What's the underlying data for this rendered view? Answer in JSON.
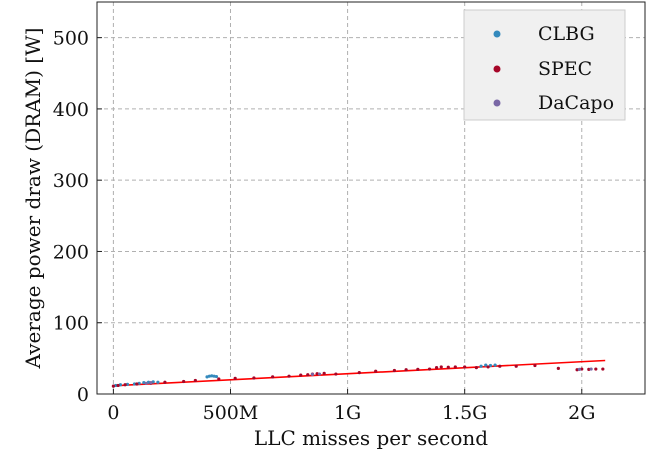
{
  "chart_data": {
    "type": "scatter",
    "title": "",
    "xlabel": "LLC misses per second",
    "ylabel": "Average power draw (DRAM) [W]",
    "xlim": [
      -0.07,
      2.27
    ],
    "ylim": [
      0,
      550
    ],
    "x_unit": "billion LLC misses per second",
    "x_ticks": [
      0,
      0.5,
      1,
      1.5,
      2
    ],
    "x_tick_labels": [
      "0",
      "500M",
      "1G",
      "1.5G",
      "2G"
    ],
    "y_ticks": [
      0,
      100,
      200,
      300,
      400,
      500
    ],
    "y_tick_labels": [
      "0",
      "100",
      "200",
      "300",
      "400",
      "500"
    ],
    "grid": true,
    "legend_position": "top-right",
    "series": [
      {
        "name": "CLBG",
        "color": "#348ABD",
        "points": [
          [
            0.01,
            12
          ],
          [
            0.03,
            13
          ],
          [
            0.06,
            13.5
          ],
          [
            0.09,
            14
          ],
          [
            0.11,
            15
          ],
          [
            0.13,
            16
          ],
          [
            0.15,
            16.5
          ],
          [
            0.17,
            17
          ],
          [
            0.19,
            16.5
          ],
          [
            0.4,
            24
          ],
          [
            0.41,
            25
          ],
          [
            0.42,
            25.5
          ],
          [
            0.43,
            25
          ],
          [
            0.44,
            24.5
          ],
          [
            1.57,
            39
          ],
          [
            1.59,
            40.5
          ],
          [
            1.61,
            40
          ],
          [
            1.63,
            40.5
          ]
        ]
      },
      {
        "name": "SPEC",
        "color": "#A60628",
        "points": [
          [
            0.0,
            11
          ],
          [
            0.02,
            12
          ],
          [
            0.05,
            13
          ],
          [
            0.1,
            14
          ],
          [
            0.16,
            15
          ],
          [
            0.22,
            16.5
          ],
          [
            0.3,
            17.5
          ],
          [
            0.35,
            19
          ],
          [
            0.45,
            21
          ],
          [
            0.52,
            22
          ],
          [
            0.6,
            22.5
          ],
          [
            0.68,
            24
          ],
          [
            0.75,
            25
          ],
          [
            0.8,
            26.5
          ],
          [
            0.83,
            27
          ],
          [
            0.85,
            28
          ],
          [
            0.87,
            28.5
          ],
          [
            0.9,
            29
          ],
          [
            0.95,
            28
          ],
          [
            1.05,
            30
          ],
          [
            1.12,
            32
          ],
          [
            1.2,
            33
          ],
          [
            1.25,
            34
          ],
          [
            1.3,
            34.5
          ],
          [
            1.35,
            35
          ],
          [
            1.38,
            37
          ],
          [
            1.4,
            38
          ],
          [
            1.43,
            37.5
          ],
          [
            1.46,
            38
          ],
          [
            1.5,
            38
          ],
          [
            1.55,
            37
          ],
          [
            1.6,
            38
          ],
          [
            1.65,
            39
          ],
          [
            1.72,
            39
          ],
          [
            1.8,
            40
          ],
          [
            1.9,
            36
          ],
          [
            1.98,
            34
          ],
          [
            2.0,
            35
          ],
          [
            2.03,
            34.5
          ],
          [
            2.06,
            35
          ],
          [
            2.09,
            35
          ]
        ]
      },
      {
        "name": "DaCapo",
        "color": "#7A68A6",
        "points": [
          [
            0.14,
            15
          ],
          [
            0.16,
            16
          ],
          [
            0.85,
            27.5
          ],
          [
            0.88,
            28
          ],
          [
            1.99,
            34.5
          ],
          [
            2.04,
            35
          ]
        ]
      }
    ],
    "fit_line": {
      "color": "#FF0000",
      "x": [
        0,
        2.1
      ],
      "y": [
        11.5,
        47
      ]
    }
  }
}
